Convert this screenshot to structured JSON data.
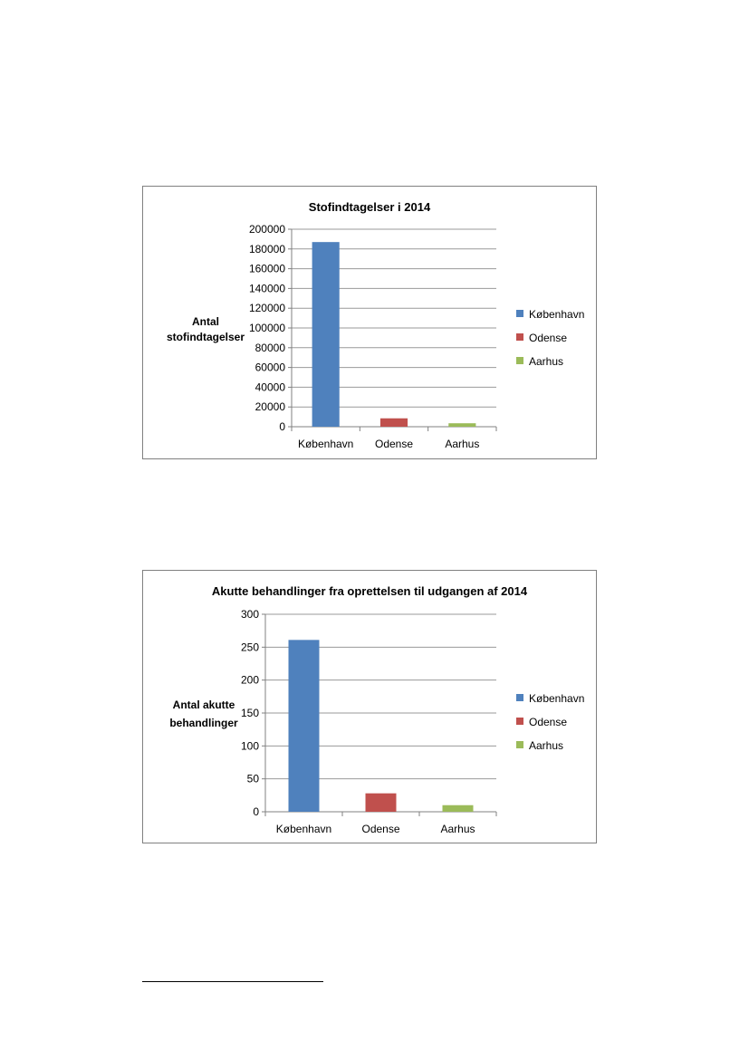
{
  "chart_data": [
    {
      "type": "bar",
      "title": "Stofindtagelser i 2014",
      "ylabel": [
        "Antal",
        "stofindtagelser"
      ],
      "xlabel": "",
      "categories": [
        "København",
        "Odense",
        "Aarhus"
      ],
      "values": [
        187000,
        8500,
        3500
      ],
      "colors": [
        "#4f81bd",
        "#c0504d",
        "#9bbb59"
      ],
      "yticks": [
        "0",
        "20000",
        "40000",
        "60000",
        "80000",
        "100000",
        "120000",
        "140000",
        "160000",
        "180000",
        "200000"
      ],
      "ylim": [
        0,
        200000
      ],
      "grid": true,
      "legend": {
        "position": "right",
        "entries": [
          "København",
          "Odense",
          "Aarhus"
        ]
      }
    },
    {
      "type": "bar",
      "title": "Akutte behandlinger fra oprettelsen til udgangen af 2014",
      "ylabel": [
        "Antal akutte",
        "behandlinger"
      ],
      "xlabel": "",
      "categories": [
        "København",
        "Odense",
        "Aarhus"
      ],
      "values": [
        261,
        28,
        10
      ],
      "colors": [
        "#4f81bd",
        "#c0504d",
        "#9bbb59"
      ],
      "yticks": [
        "0",
        "50",
        "100",
        "150",
        "200",
        "250",
        "300"
      ],
      "ylim": [
        0,
        300
      ],
      "grid": true,
      "legend": {
        "position": "right",
        "entries": [
          "København",
          "Odense",
          "Aarhus"
        ]
      }
    }
  ]
}
